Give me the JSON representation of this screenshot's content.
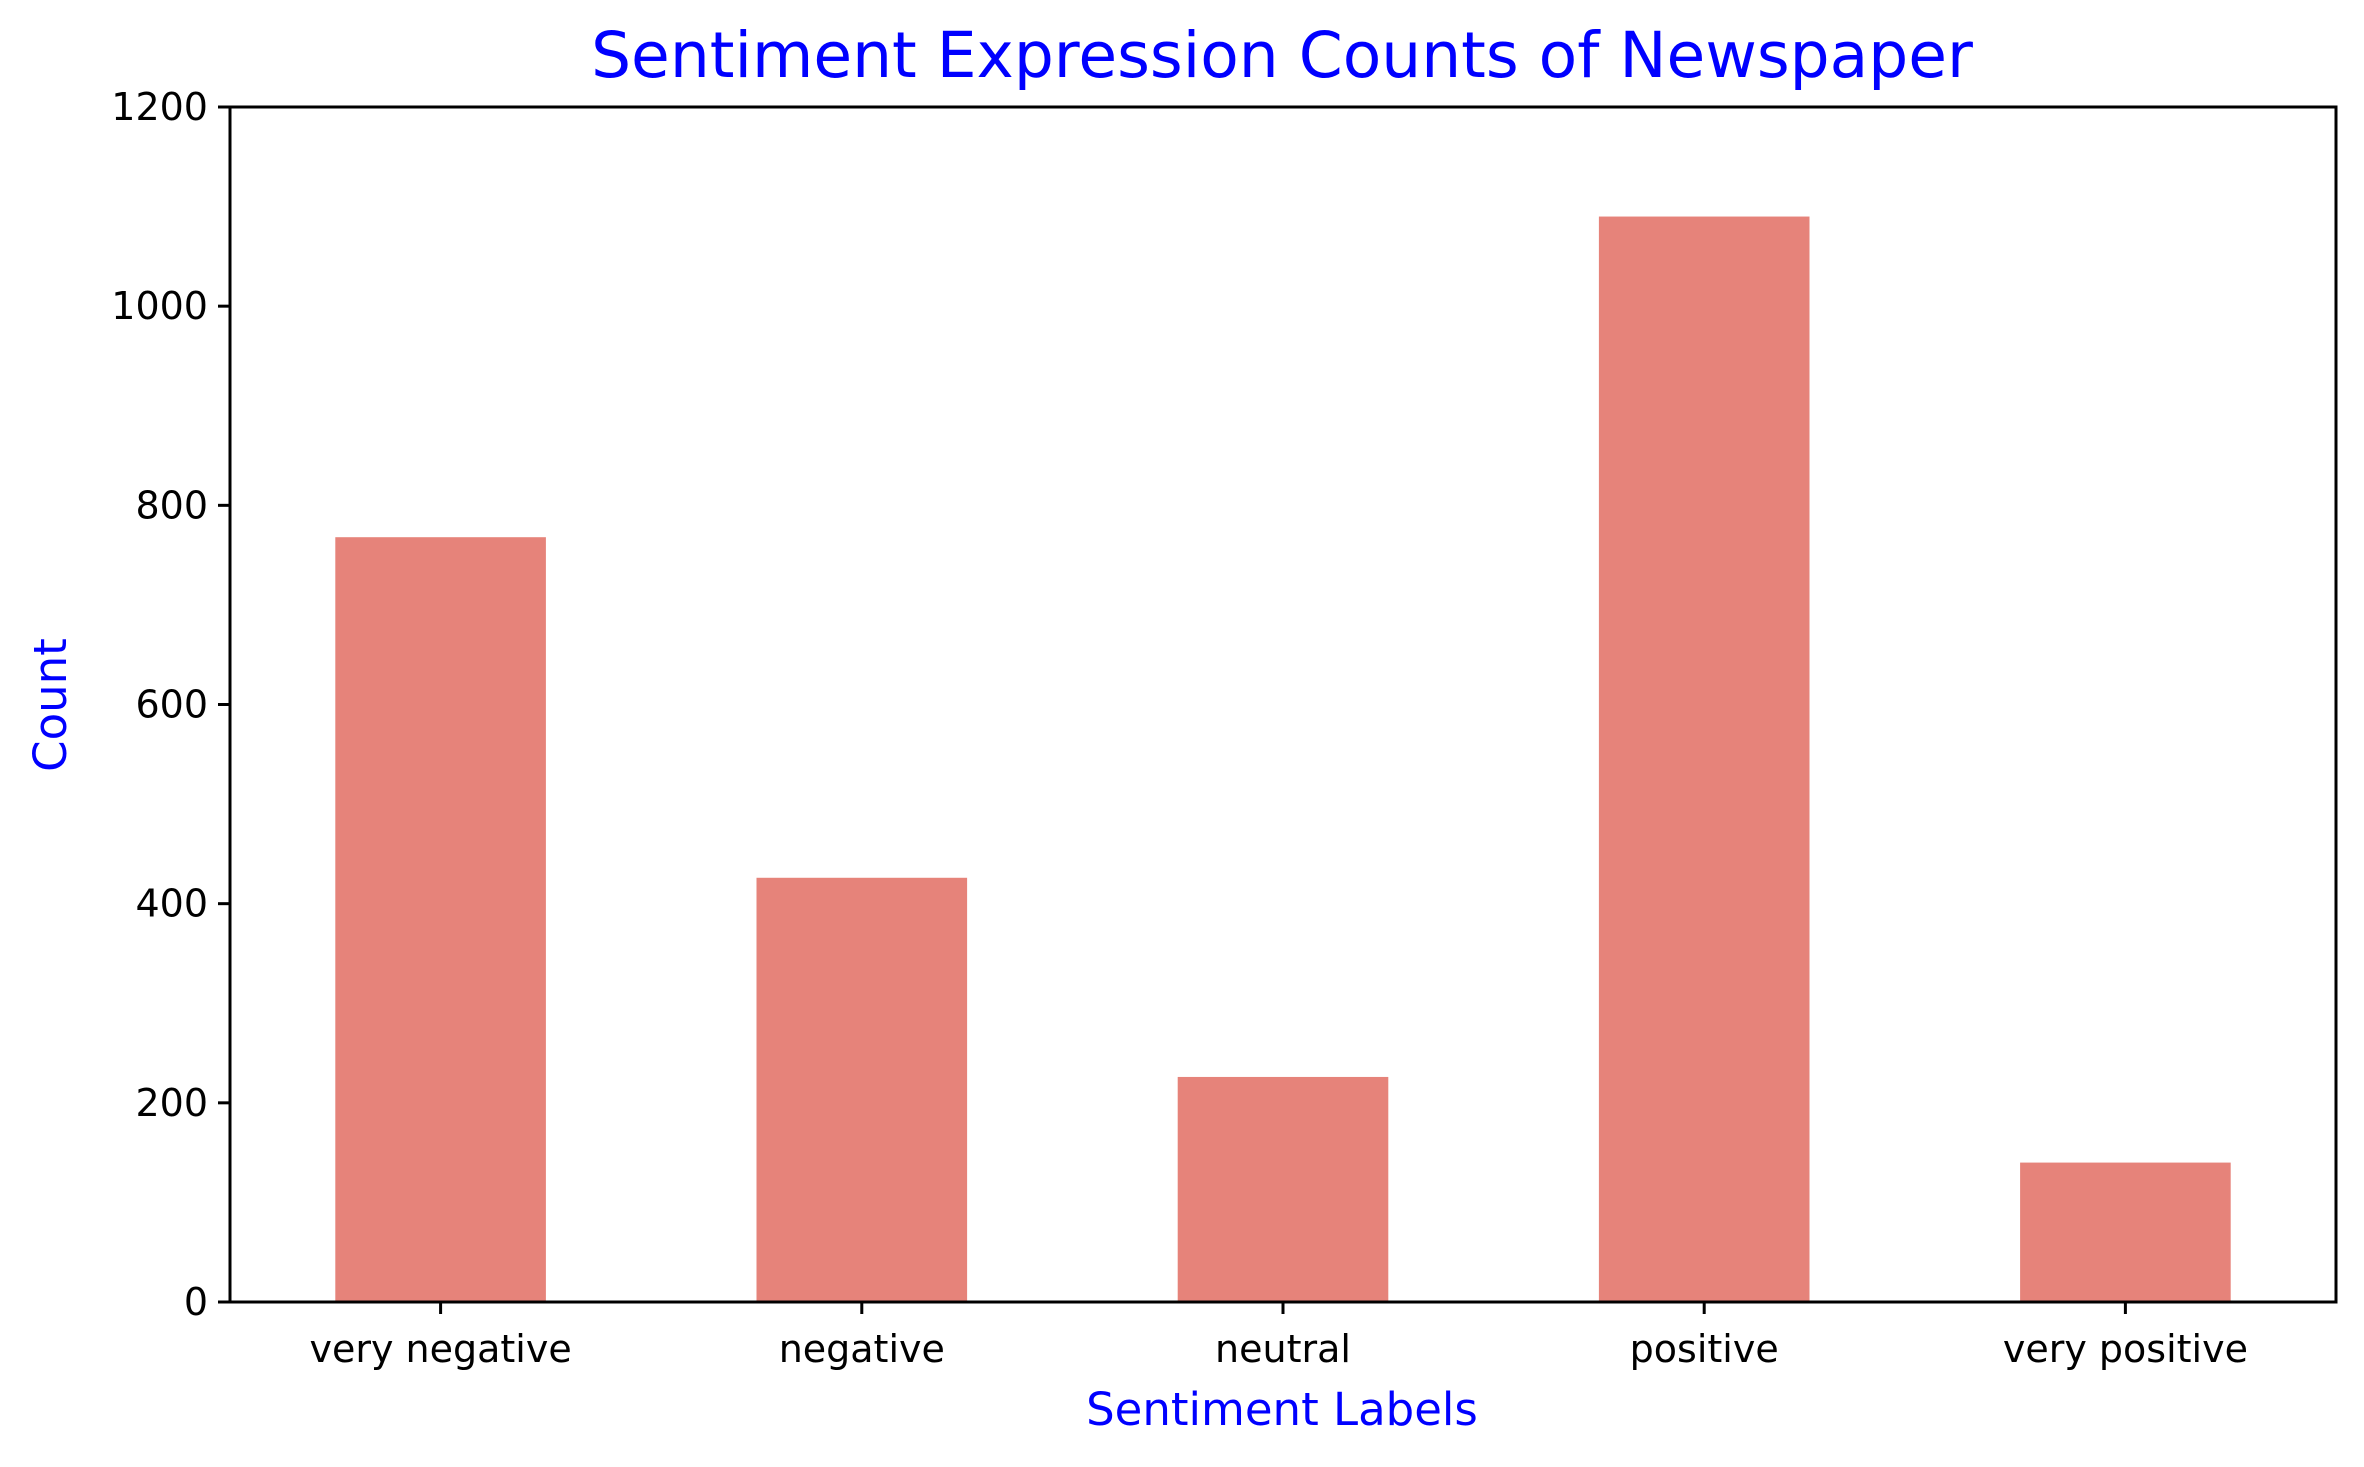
{
  "chart_data": {
    "type": "bar",
    "title": "Sentiment Expression Counts of Newspaper",
    "xlabel": "Sentiment Labels",
    "ylabel": "Count",
    "categories": [
      "very negative",
      "negative",
      "neutral",
      "positive",
      "very positive"
    ],
    "values": [
      768,
      426,
      226,
      1090,
      140
    ],
    "ylim": [
      0,
      1200
    ],
    "yticks": [
      0,
      200,
      400,
      600,
      800,
      1000,
      1200
    ],
    "grid": false,
    "legend": "none",
    "colors": {
      "bar": "#e6837a",
      "title": "#0000ff",
      "axis_label": "#0000ff",
      "axis": "#000000"
    }
  }
}
